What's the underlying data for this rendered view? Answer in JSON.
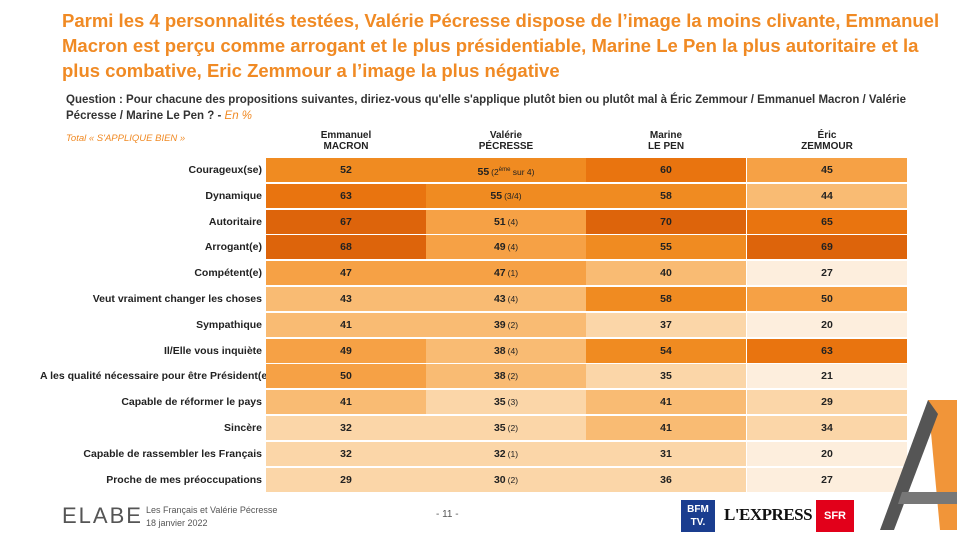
{
  "title": "Parmi les 4 personnalités testées, Valérie Pécresse dispose de l’image la moins clivante, Emmanuel Macron est perçu comme arrogant et le plus présidentiable, Marine Le Pen la plus autoritaire et la plus combative, Eric Zemmour a l’image la plus négative",
  "question": {
    "text": "Question : Pour chacune des propositions suivantes, diriez-vous qu'elle s'applique plutôt bien ou plutôt mal à Éric Zemmour / Emmanuel Macron / Valérie Pécresse / Marine Le Pen ? -",
    "unit": "En %"
  },
  "total_label": "Total « S'APPLIQUE BIEN »",
  "columns": [
    {
      "line1": "Emmanuel",
      "line2": "MACRON"
    },
    {
      "line1": "Valérie",
      "line2": "PÉCRESSE"
    },
    {
      "line1": "Marine",
      "line2": "LE PEN"
    },
    {
      "line1": "Éric",
      "line2": "ZEMMOUR"
    }
  ],
  "colors": {
    "lvl0": "#fdeedd",
    "lvl1": "#fbd6a8",
    "lvl2": "#f9bb73",
    "lvl3": "#f6a145",
    "lvl4": "#f08b21",
    "lvl5": "#e9740f",
    "lvl6": "#dd640b",
    "title": "#f08a24"
  },
  "rows": [
    {
      "label": "Courageux(se)",
      "macron": "52",
      "pecresse": "55",
      "pecresse_rank": "(2ème sur 4)",
      "lepen": "60",
      "zemmour": "45"
    },
    {
      "label": "Dynamique",
      "macron": "63",
      "pecresse": "55",
      "pecresse_rank": "(3/4)",
      "lepen": "58",
      "zemmour": "44"
    },
    {
      "label": "Autoritaire",
      "macron": "67",
      "pecresse": "51",
      "pecresse_rank": "(4)",
      "lepen": "70",
      "zemmour": "65"
    },
    {
      "label": "Arrogant(e)",
      "macron": "68",
      "pecresse": "49",
      "pecresse_rank": "(4)",
      "lepen": "55",
      "zemmour": "69"
    },
    {
      "label": "Compétent(e)",
      "macron": "47",
      "pecresse": "47",
      "pecresse_rank": "(1)",
      "lepen": "40",
      "zemmour": "27"
    },
    {
      "label": "Veut vraiment changer les choses",
      "macron": "43",
      "pecresse": "43",
      "pecresse_rank": "(4)",
      "lepen": "58",
      "zemmour": "50"
    },
    {
      "label": "Sympathique",
      "macron": "41",
      "pecresse": "39",
      "pecresse_rank": "(2)",
      "lepen": "37",
      "zemmour": "20"
    },
    {
      "label": "Il/Elle vous inquiète",
      "macron": "49",
      "pecresse": "38",
      "pecresse_rank": "(4)",
      "lepen": "54",
      "zemmour": "63"
    },
    {
      "label": "A les qualité nécessaire pour être Président(e)",
      "macron": "50",
      "pecresse": "38",
      "pecresse_rank": "(2)",
      "lepen": "35",
      "zemmour": "21"
    },
    {
      "label": "Capable de réformer le pays",
      "macron": "41",
      "pecresse": "35",
      "pecresse_rank": "(3)",
      "lepen": "41",
      "zemmour": "29"
    },
    {
      "label": "Sincère",
      "macron": "32",
      "pecresse": "35",
      "pecresse_rank": "(2)",
      "lepen": "41",
      "zemmour": "34"
    },
    {
      "label": "Capable de rassembler les Français",
      "macron": "32",
      "pecresse": "32",
      "pecresse_rank": "(1)",
      "lepen": "31",
      "zemmour": "20"
    },
    {
      "label": "Proche de mes préoccupations",
      "macron": "29",
      "pecresse": "30",
      "pecresse_rank": "(2)",
      "lepen": "36",
      "zemmour": "27"
    }
  ],
  "footer": {
    "logo": "ELABE",
    "line1": "Les Français et Valérie Pécresse",
    "line2": "18 janvier 2022",
    "page": "- 11 -",
    "bfm_line1": "BFM",
    "bfm_line2": "TV.",
    "lexpress": "L'EXPRESS",
    "sfr": "SFR"
  }
}
